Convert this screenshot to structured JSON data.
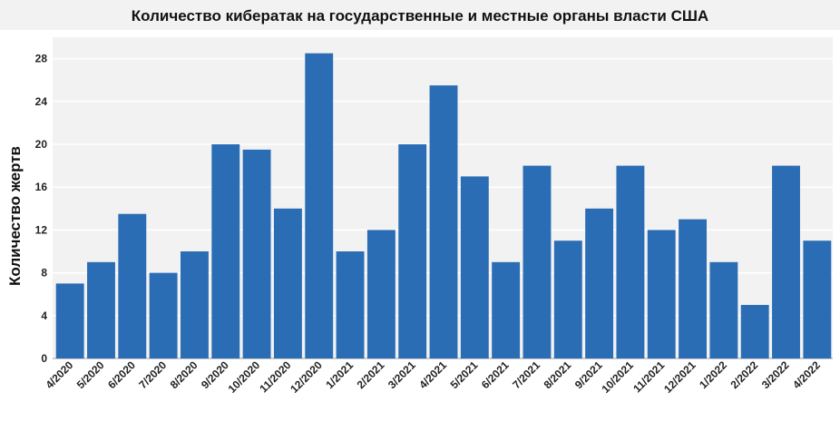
{
  "chart_data": {
    "type": "bar",
    "title": "Количество кибератак на государственные и местные органы власти США",
    "xlabel": "",
    "ylabel": "Количество жертв",
    "categories": [
      "4/2020",
      "5/2020",
      "6/2020",
      "7/2020",
      "8/2020",
      "9/2020",
      "10/2020",
      "11/2020",
      "12/2020",
      "1/2021",
      "2/2021",
      "3/2021",
      "4/2021",
      "5/2021",
      "6/2021",
      "7/2021",
      "8/2021",
      "9/2021",
      "10/2021",
      "11/2021",
      "12/2021",
      "1/2022",
      "2/2022",
      "3/2022",
      "4/2022"
    ],
    "values": [
      7,
      9,
      13.5,
      8,
      10,
      20,
      19.5,
      14,
      28.5,
      10,
      12,
      20,
      25.5,
      17,
      9,
      18,
      11,
      14,
      18,
      12,
      13,
      9,
      5,
      18,
      11
    ],
    "yticks": [
      "0",
      "4",
      "8",
      "12",
      "16",
      "20",
      "24",
      "28"
    ],
    "ylim": [
      0,
      30
    ],
    "grid": true,
    "legend": "none",
    "colors": {
      "bar": "#2a6db5",
      "plot_bg": "#f2f2f2",
      "grid": "#ffffff"
    }
  }
}
